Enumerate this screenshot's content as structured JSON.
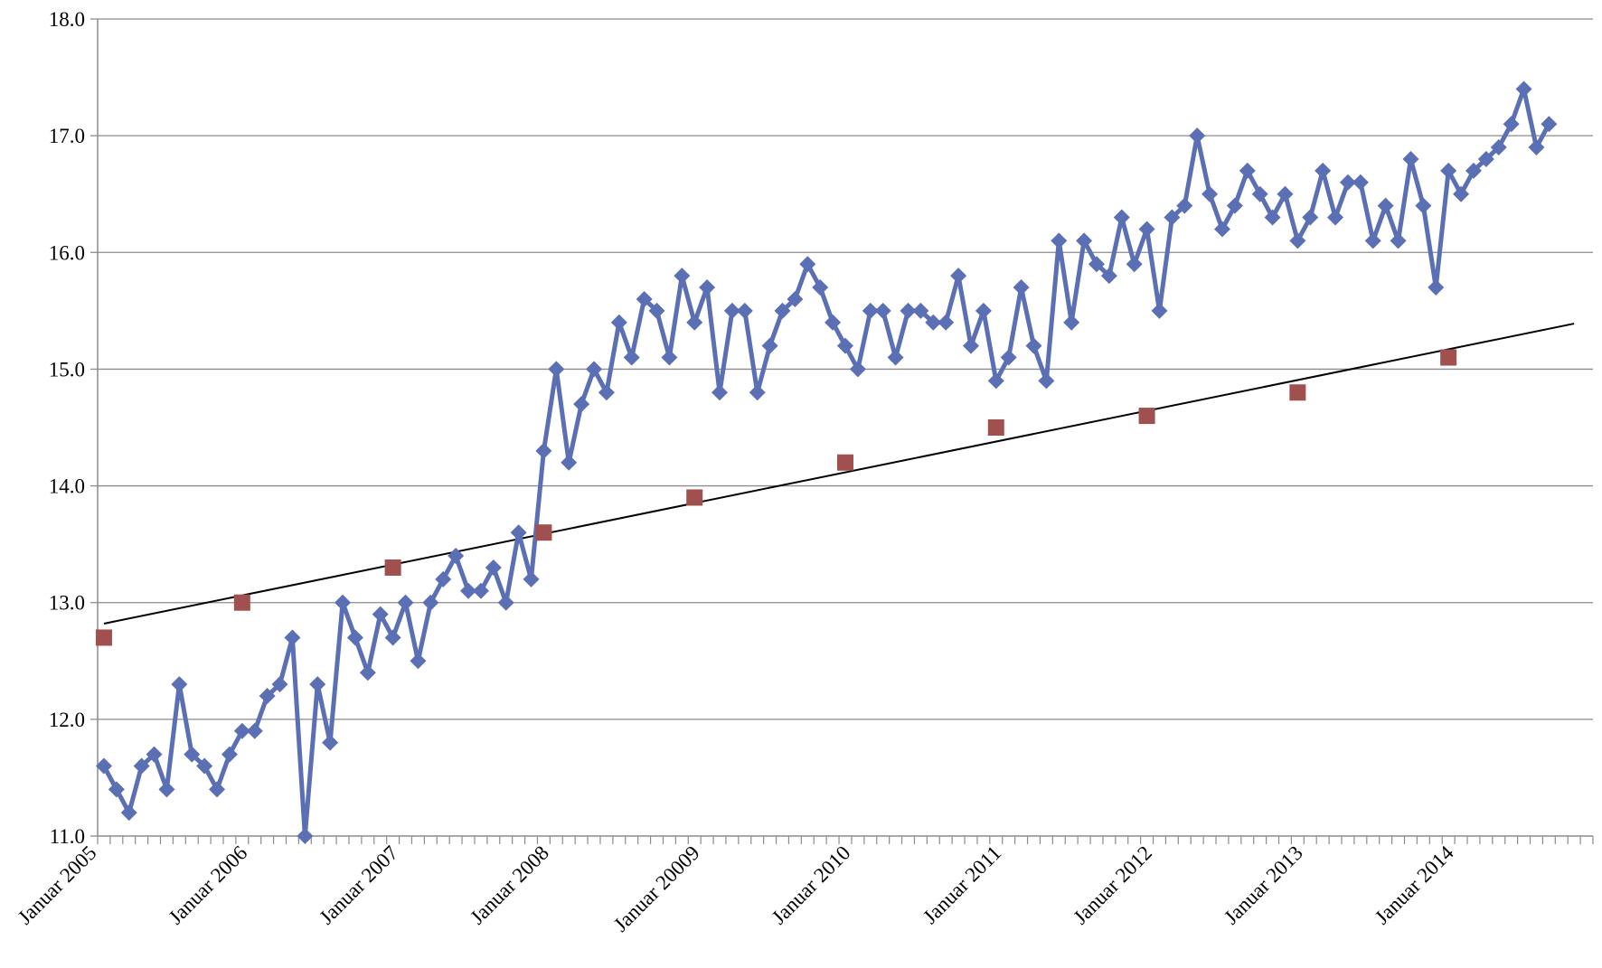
{
  "chart_data": {
    "type": "line",
    "title": "",
    "xlabel": "",
    "ylabel": "",
    "ylim": [
      11.0,
      18.0
    ],
    "yticks": [
      "11.0",
      "12.0",
      "13.0",
      "14.0",
      "15.0",
      "16.0",
      "17.0",
      "18.0"
    ],
    "xticks": [
      "Januar 2005",
      "Januar 2006",
      "Januar 2007",
      "Januar 2008",
      "Januar 20009",
      "Januar 2010",
      "Januar 2011",
      "Januar 2012",
      "Januar 2013",
      "Januar 2014"
    ],
    "grid": "horizontal",
    "legend": "none",
    "series": [
      {
        "kind": "monthly-line",
        "color": "#5b6fb4",
        "marker": "diamond",
        "start": "2005-01",
        "values": [
          11.6,
          11.4,
          11.2,
          11.6,
          11.7,
          11.4,
          12.3,
          11.7,
          11.6,
          11.4,
          11.7,
          11.9,
          11.9,
          12.2,
          12.3,
          12.7,
          11.0,
          12.3,
          11.8,
          13.0,
          12.7,
          12.4,
          12.9,
          12.7,
          13.0,
          12.5,
          13.0,
          13.2,
          13.4,
          13.1,
          13.1,
          13.3,
          13.0,
          13.6,
          13.2,
          14.3,
          15.0,
          14.2,
          14.7,
          15.0,
          14.8,
          15.4,
          15.1,
          15.6,
          15.5,
          15.1,
          15.8,
          15.4,
          15.7,
          14.8,
          15.5,
          15.5,
          14.8,
          15.2,
          15.5,
          15.6,
          15.9,
          15.7,
          15.4,
          15.2,
          15.0,
          15.5,
          15.5,
          15.1,
          15.5,
          15.5,
          15.4,
          15.4,
          15.8,
          15.2,
          15.5,
          14.9,
          15.1,
          15.7,
          15.2,
          14.9,
          16.1,
          15.4,
          16.1,
          15.9,
          15.8,
          16.3,
          15.9,
          16.2,
          15.5,
          16.3,
          16.4,
          17.0,
          16.5,
          16.2,
          16.4,
          16.7,
          16.5,
          16.3,
          16.5,
          16.1,
          16.3,
          16.7,
          16.3,
          16.6,
          16.6,
          16.1,
          16.4,
          16.1,
          16.8,
          16.4,
          15.7,
          16.7,
          16.5,
          16.7,
          16.8,
          16.9,
          17.1,
          17.4,
          16.9,
          17.1
        ]
      },
      {
        "kind": "annual-points",
        "color": "#a0504f",
        "marker": "square",
        "months": [
          "2005-01",
          "2005-12",
          "2006-12",
          "2007-12",
          "2008-12",
          "2009-12",
          "2010-12",
          "2011-12",
          "2012-12",
          "2013-12"
        ],
        "values": [
          12.7,
          13.0,
          13.3,
          13.6,
          13.9,
          14.2,
          14.5,
          14.6,
          14.8,
          15.1
        ]
      },
      {
        "kind": "trendline",
        "color": "#000000",
        "from": {
          "x": "2005-01",
          "y": 12.82
        },
        "to": {
          "x": "2014-10",
          "y": 15.39
        }
      }
    ]
  }
}
